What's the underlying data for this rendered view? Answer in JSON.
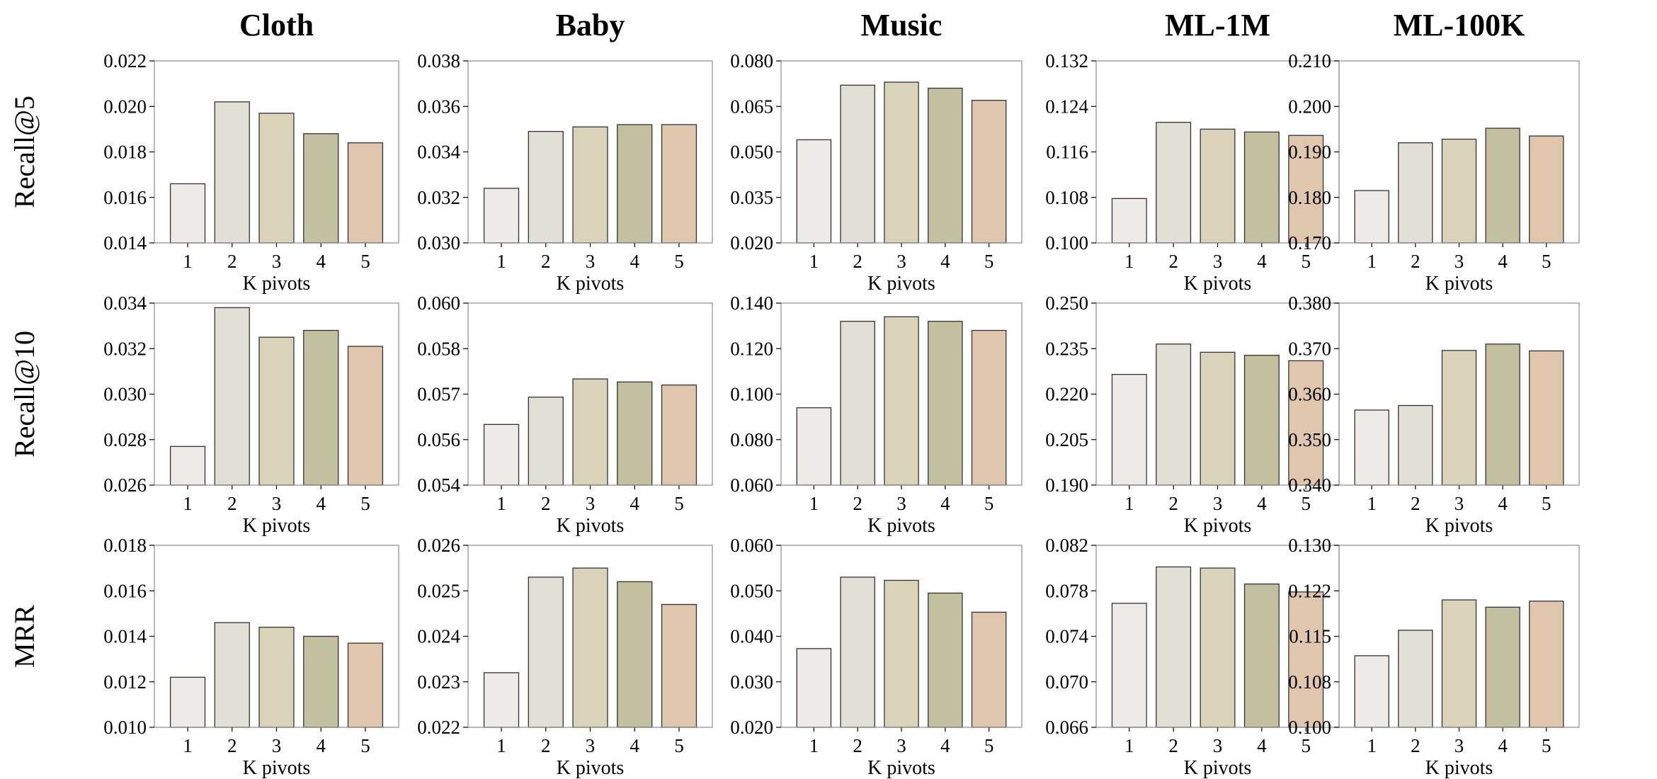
{
  "figure": {
    "column_titles": [
      "Cloth",
      "Baby",
      "Music",
      "ML-1M",
      "ML-100K"
    ],
    "row_labels": [
      "Recall@5",
      "Recall@10",
      "MRR"
    ],
    "bar_colors": [
      "#ecebe8",
      "#e0e0d4",
      "#d8d3b9",
      "#c2c09f",
      "#dfc6ad"
    ]
  },
  "chart_data": [
    {
      "type": "bar",
      "title": "Cloth",
      "ylabel": "Recall@5",
      "xlabel": "K pivots",
      "categories": [
        "1",
        "2",
        "3",
        "4",
        "5"
      ],
      "values": [
        0.0166,
        0.0202,
        0.0197,
        0.0188,
        0.0184
      ],
      "ylim": [
        0.014,
        0.022
      ],
      "yticks": [
        "0.014",
        "0.016",
        "0.018",
        "0.020",
        "0.022"
      ]
    },
    {
      "type": "bar",
      "title": "Baby",
      "ylabel": "Recall@5",
      "xlabel": "K pivots",
      "categories": [
        "1",
        "2",
        "3",
        "4",
        "5"
      ],
      "values": [
        0.0324,
        0.0349,
        0.0351,
        0.0352,
        0.0352
      ],
      "ylim": [
        0.03,
        0.038
      ],
      "yticks": [
        "0.030",
        "0.032",
        "0.034",
        "0.036",
        "0.038"
      ]
    },
    {
      "type": "bar",
      "title": "Music",
      "ylabel": "Recall@5",
      "xlabel": "K pivots",
      "categories": [
        "1",
        "2",
        "3",
        "4",
        "5"
      ],
      "values": [
        0.054,
        0.072,
        0.073,
        0.071,
        0.067
      ],
      "ylim": [
        0.02,
        0.08
      ],
      "yticks": [
        "0.020",
        "0.035",
        "0.050",
        "0.065",
        "0.080"
      ]
    },
    {
      "type": "bar",
      "title": "ML-1M",
      "ylabel": "Recall@5",
      "xlabel": "K pivots",
      "categories": [
        "1",
        "2",
        "3",
        "4",
        "5"
      ],
      "values": [
        0.1078,
        0.1212,
        0.12,
        0.1195,
        0.1189
      ],
      "ylim": [
        0.1,
        0.132
      ],
      "yticks": [
        "0.100",
        "0.108",
        "0.116",
        "0.124",
        "0.132"
      ]
    },
    {
      "type": "bar",
      "title": "ML-100K",
      "ylabel": "Recall@5",
      "xlabel": "K pivots",
      "categories": [
        "1",
        "2",
        "3",
        "4",
        "5"
      ],
      "values": [
        0.1815,
        0.192,
        0.1928,
        0.1952,
        0.1935
      ],
      "ylim": [
        0.17,
        0.21
      ],
      "yticks": [
        "0.170",
        "0.180",
        "0.190",
        "0.200",
        "0.210"
      ]
    },
    {
      "type": "bar",
      "title": "Cloth",
      "ylabel": "Recall@10",
      "xlabel": "K pivots",
      "categories": [
        "1",
        "2",
        "3",
        "4",
        "5"
      ],
      "values": [
        0.0277,
        0.0338,
        0.0325,
        0.0328,
        0.0321
      ],
      "ylim": [
        0.026,
        0.034
      ],
      "yticks": [
        "0.026",
        "0.028",
        "0.030",
        "0.032",
        "0.034"
      ]
    },
    {
      "type": "bar",
      "title": "Baby",
      "ylabel": "Recall@10",
      "xlabel": "K pivots",
      "categories": [
        "1",
        "2",
        "3",
        "4",
        "5"
      ],
      "values": [
        0.056,
        0.0569,
        0.0575,
        0.0574,
        0.0573
      ],
      "ylim": [
        0.054,
        0.06
      ],
      "yticks": [
        "0.054",
        "0.056",
        "0.057",
        "0.058",
        "0.060"
      ]
    },
    {
      "type": "bar",
      "title": "Music",
      "ylabel": "Recall@10",
      "xlabel": "K pivots",
      "categories": [
        "1",
        "2",
        "3",
        "4",
        "5"
      ],
      "values": [
        0.094,
        0.132,
        0.134,
        0.132,
        0.128
      ],
      "ylim": [
        0.06,
        0.14
      ],
      "yticks": [
        "0.060",
        "0.080",
        "0.100",
        "0.120",
        "0.140"
      ]
    },
    {
      "type": "bar",
      "title": "ML-1M",
      "ylabel": "Recall@10",
      "xlabel": "K pivots",
      "categories": [
        "1",
        "2",
        "3",
        "4",
        "5"
      ],
      "values": [
        0.2265,
        0.2365,
        0.2338,
        0.2328,
        0.231
      ],
      "ylim": [
        0.19,
        0.25
      ],
      "yticks": [
        "0.190",
        "0.205",
        "0.220",
        "0.235",
        "0.250"
      ]
    },
    {
      "type": "bar",
      "title": "ML-100K",
      "ylabel": "Recall@10",
      "xlabel": "K pivots",
      "categories": [
        "1",
        "2",
        "3",
        "4",
        "5"
      ],
      "values": [
        0.3565,
        0.3575,
        0.3696,
        0.371,
        0.3695
      ],
      "ylim": [
        0.34,
        0.38
      ],
      "yticks": [
        "0.340",
        "0.350",
        "0.360",
        "0.370",
        "0.380"
      ]
    },
    {
      "type": "bar",
      "title": "Cloth",
      "ylabel": "MRR",
      "xlabel": "K pivots",
      "categories": [
        "1",
        "2",
        "3",
        "4",
        "5"
      ],
      "values": [
        0.0122,
        0.0146,
        0.0144,
        0.014,
        0.0137
      ],
      "ylim": [
        0.01,
        0.018
      ],
      "yticks": [
        "0.010",
        "0.012",
        "0.014",
        "0.016",
        "0.018"
      ]
    },
    {
      "type": "bar",
      "title": "Baby",
      "ylabel": "MRR",
      "xlabel": "K pivots",
      "categories": [
        "1",
        "2",
        "3",
        "4",
        "5"
      ],
      "values": [
        0.0232,
        0.0253,
        0.0255,
        0.0252,
        0.0247
      ],
      "ylim": [
        0.022,
        0.026
      ],
      "yticks": [
        "0.022",
        "0.023",
        "0.024",
        "0.025",
        "0.026"
      ]
    },
    {
      "type": "bar",
      "title": "Music",
      "ylabel": "MRR",
      "xlabel": "K pivots",
      "categories": [
        "1",
        "2",
        "3",
        "4",
        "5"
      ],
      "values": [
        0.0373,
        0.053,
        0.0523,
        0.0495,
        0.0453
      ],
      "ylim": [
        0.02,
        0.06
      ],
      "yticks": [
        "0.020",
        "0.030",
        "0.040",
        "0.050",
        "0.060"
      ]
    },
    {
      "type": "bar",
      "title": "ML-1M",
      "ylabel": "MRR",
      "xlabel": "K pivots",
      "categories": [
        "1",
        "2",
        "3",
        "4",
        "5"
      ],
      "values": [
        0.0769,
        0.0801,
        0.08,
        0.0786,
        0.0779
      ],
      "ylim": [
        0.066,
        0.082
      ],
      "yticks": [
        "0.066",
        "0.070",
        "0.074",
        "0.078",
        "0.082"
      ]
    },
    {
      "type": "bar",
      "title": "ML-100K",
      "ylabel": "MRR",
      "xlabel": "K pivots",
      "categories": [
        "1",
        "2",
        "3",
        "4",
        "5"
      ],
      "values": [
        0.1118,
        0.116,
        0.121,
        0.1198,
        0.1208
      ],
      "ylim": [
        0.1,
        0.13
      ],
      "yticks": [
        "0.100",
        "0.108",
        "0.115",
        "0.122",
        "0.130"
      ]
    }
  ]
}
